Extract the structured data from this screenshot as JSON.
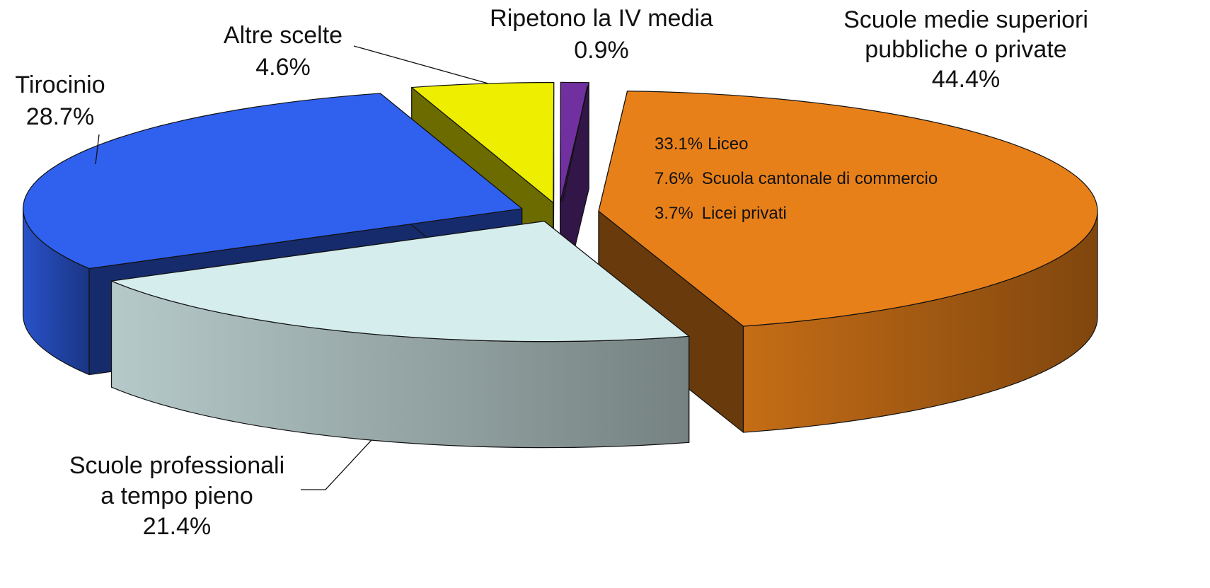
{
  "chart_data": {
    "type": "pie3d",
    "categories": [
      [
        "Scuole medie superiori",
        "pubbliche o private"
      ],
      [
        "Scuole professionali",
        "a tempo pieno"
      ],
      [
        "Tirocinio"
      ],
      [
        "Altre scelte"
      ],
      [
        "Ripetono la IV media"
      ]
    ],
    "values": [
      44.4,
      21.4,
      28.7,
      4.6,
      0.9
    ],
    "value_labels": [
      "44.4%",
      "21.4%",
      "28.7%",
      "4.6%",
      "0.9%"
    ],
    "colors": [
      "#e8801a",
      "#d6eded",
      "#3060ee",
      "#eeee00",
      "#7030a0"
    ],
    "breakdown": [
      {
        "label": "33.1%",
        "name": "Liceo"
      },
      {
        "label": "7.6%",
        "name": "Scuola cantonale di commercio"
      },
      {
        "label": "3.7%",
        "name": "Licei privati"
      }
    ]
  }
}
